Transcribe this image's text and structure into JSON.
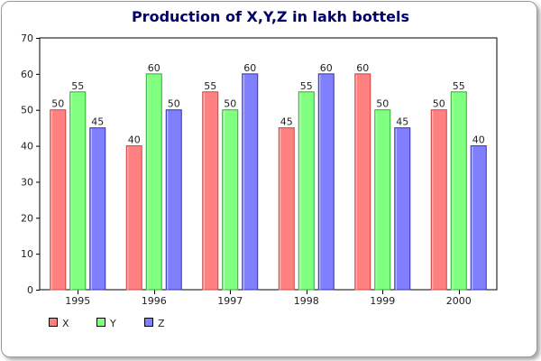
{
  "chart_data": {
    "type": "bar",
    "title": "Production of X,Y,Z in lakh bottels",
    "xlabel": "",
    "ylabel": "",
    "categories": [
      "1995",
      "1996",
      "1997",
      "1998",
      "1999",
      "2000"
    ],
    "series": [
      {
        "name": "X",
        "values": [
          50,
          40,
          55,
          45,
          60,
          50
        ],
        "color": "#ff8080",
        "border": "#cc4444"
      },
      {
        "name": "Y",
        "values": [
          55,
          60,
          50,
          55,
          50,
          55
        ],
        "color": "#80ff80",
        "border": "#33aa33"
      },
      {
        "name": "Z",
        "values": [
          45,
          50,
          60,
          60,
          45,
          40
        ],
        "color": "#8080ff",
        "border": "#3333aa"
      }
    ],
    "ylim": [
      0,
      70
    ],
    "yticks": [
      0,
      10,
      20,
      30,
      40,
      50,
      60,
      70
    ],
    "grid": false,
    "legend": "bottom-left",
    "title_color": "#000066"
  }
}
